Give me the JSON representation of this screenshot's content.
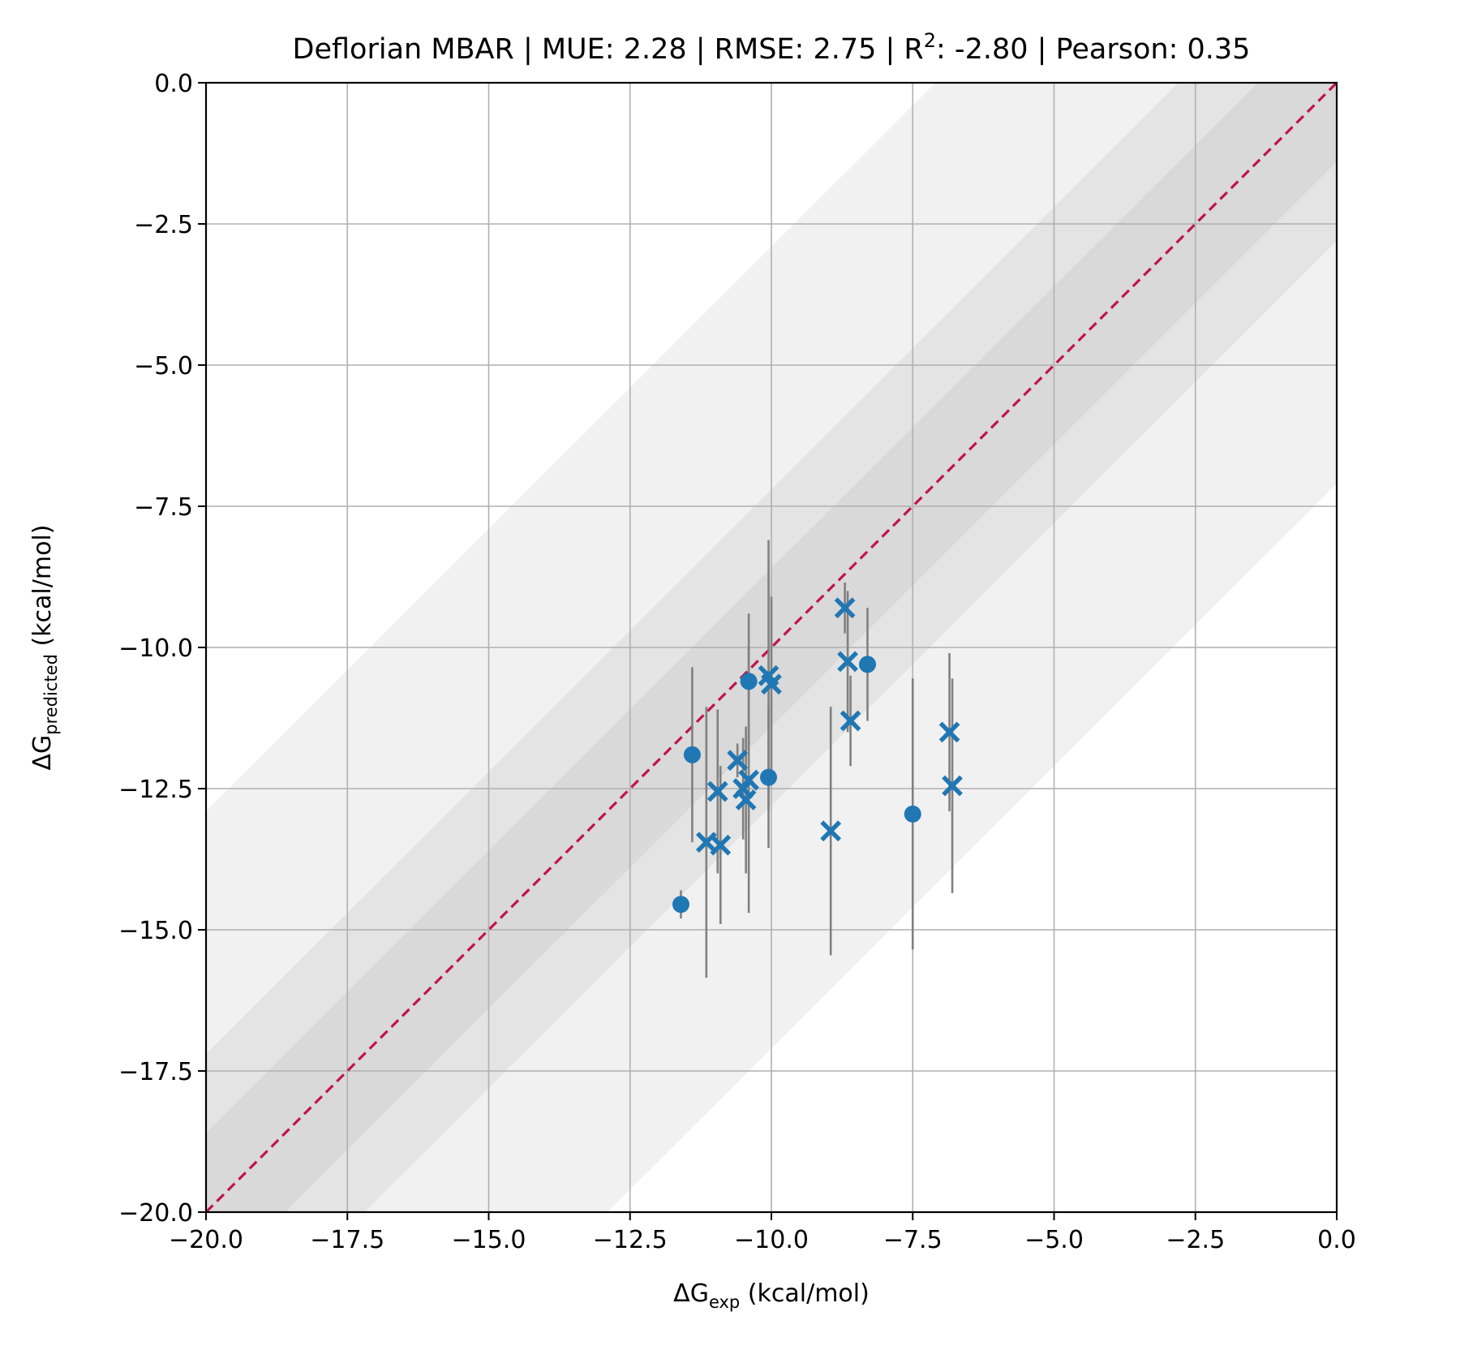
{
  "chart_data": {
    "type": "scatter",
    "title": {
      "prefix": "Deflorian MBAR | MUE: 2.28 | RMSE: 2.75 | R",
      "superscript": "2",
      "suffix": ": -2.80 | Pearson: 0.35"
    },
    "xlabel": {
      "main": "ΔG",
      "subscript": "exp",
      "suffix": " (kcal/mol)"
    },
    "ylabel": {
      "main": "ΔG",
      "subscript": "predicted",
      "suffix": " (kcal/mol)"
    },
    "xlim": [
      -20,
      0
    ],
    "ylim": [
      -20,
      0
    ],
    "grid": true,
    "xticks": [
      -20.0,
      -17.5,
      -15.0,
      -12.5,
      -10.0,
      -7.5,
      -5.0,
      -2.5,
      0.0
    ],
    "yticks": [
      0.0,
      -2.5,
      -5.0,
      -7.5,
      -10.0,
      -12.5,
      -15.0,
      -17.5,
      -20.0
    ],
    "xtick_labels": [
      "−20.0",
      "−17.5",
      "−15.0",
      "−12.5",
      "−10.0",
      "−7.5",
      "−5.0",
      "−2.5",
      "0.0"
    ],
    "ytick_labels": [
      "0.0",
      "−2.5",
      "−5.0",
      "−7.5",
      "−10.0",
      "−12.5",
      "−15.0",
      "−17.5",
      "−20.0"
    ],
    "bands": [
      1.4,
      2.8,
      7.1
    ],
    "colors": {
      "points": "#1f77b4",
      "errorbars": "#808080",
      "identity": "#c0134e",
      "grid": "#b0b0b0",
      "band_outer": "#f1f1f1",
      "band_mid": "#e4e4e4",
      "band_inner": "#d9d9d9"
    },
    "series": [
      {
        "marker": "circle",
        "points": [
          {
            "x": -11.6,
            "y": -14.55,
            "yerr": 0.25
          },
          {
            "x": -11.4,
            "y": -11.9,
            "yerr": 1.55
          },
          {
            "x": -10.4,
            "y": -10.6,
            "yerr": 1.2
          },
          {
            "x": -10.05,
            "y": -12.3,
            "yerr": 1.25
          },
          {
            "x": -8.3,
            "y": -10.3,
            "yerr": 1.0
          },
          {
            "x": -7.5,
            "y": -12.95,
            "yerr": 2.4
          }
        ]
      },
      {
        "marker": "x",
        "points": [
          {
            "x": -11.15,
            "y": -13.45,
            "yerr": 2.4
          },
          {
            "x": -10.95,
            "y": -12.55,
            "yerr": 1.45
          },
          {
            "x": -10.9,
            "y": -13.5,
            "yerr": 1.4
          },
          {
            "x": -10.6,
            "y": -12.0,
            "yerr": 0.3
          },
          {
            "x": -10.5,
            "y": -12.5,
            "yerr": 0.9
          },
          {
            "x": -10.45,
            "y": -12.7,
            "yerr": 1.3
          },
          {
            "x": -10.4,
            "y": -12.35,
            "yerr": 2.35
          },
          {
            "x": -10.05,
            "y": -10.5,
            "yerr": 2.4
          },
          {
            "x": -10.0,
            "y": -10.65,
            "yerr": 1.55
          },
          {
            "x": -8.7,
            "y": -9.3,
            "yerr": 0.45
          },
          {
            "x": -8.65,
            "y": -10.25,
            "yerr": 1.25
          },
          {
            "x": -8.6,
            "y": -11.3,
            "yerr": 0.8
          },
          {
            "x": -8.95,
            "y": -13.25,
            "yerr": 2.2
          },
          {
            "x": -6.85,
            "y": -11.5,
            "yerr": 1.4
          },
          {
            "x": -6.8,
            "y": -12.45,
            "yerr": 1.9
          }
        ]
      }
    ]
  }
}
